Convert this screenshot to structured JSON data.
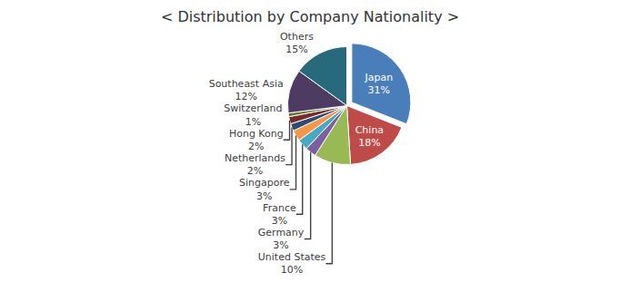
{
  "chart_data": {
    "type": "pie",
    "title": "< Distribution by Company Nationality >",
    "categories": [
      "Japan",
      "China",
      "United States",
      "Germany",
      "France",
      "Singapore",
      "Netherlands",
      "Hong Kong",
      "Switzerland",
      "Southeast Asia",
      "Others"
    ],
    "values": [
      31,
      18,
      10,
      3,
      3,
      3,
      2,
      2,
      1,
      12,
      15
    ],
    "value_labels": [
      "31%",
      "18%",
      "10%",
      "3%",
      "3%",
      "3%",
      "2%",
      "2%",
      "1%",
      "12%",
      "15%"
    ],
    "colors": [
      "#4a7ebb",
      "#be4b48",
      "#98b954",
      "#7d60a0",
      "#46aac5",
      "#f79646",
      "#2c4d75",
      "#772c2a",
      "#5f7530",
      "#4d3b62",
      "#276a7c"
    ],
    "data_labels": true
  }
}
